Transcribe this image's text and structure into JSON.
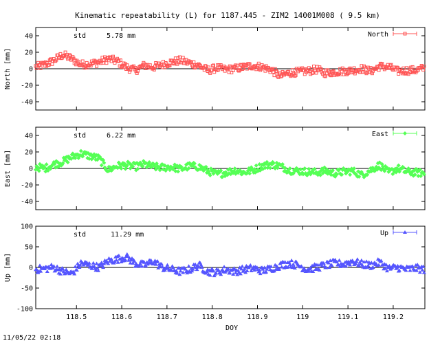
{
  "title": "Kinematic repeatability (L) for 1187.445 - ZIM2 14001M008  (  9.5 km)",
  "timestamp": "11/05/22 02:18",
  "chart_data": [
    {
      "type": "scatter",
      "panel": "north",
      "ylabel": "North [mm]",
      "xlabel": "",
      "legend": "North",
      "legend_position": "top-right",
      "std_label": "std",
      "std_value": "5.78 mm",
      "color": "#ff5555",
      "marker": "square",
      "xlim": [
        118.41,
        119.27
      ],
      "ylim": [
        -50,
        50
      ],
      "yticks": [
        "40",
        "20",
        "0",
        "-20",
        "-40"
      ],
      "ytick_values": [
        40,
        20,
        0,
        -20,
        -40
      ],
      "series": [
        {
          "name": "North",
          "x": [
            118.41,
            118.43,
            118.45,
            118.47,
            118.49,
            118.51,
            118.53,
            118.55,
            118.57,
            118.59,
            118.61,
            118.63,
            118.65,
            118.67,
            118.69,
            118.71,
            118.73,
            118.75,
            118.77,
            118.79,
            118.81,
            118.83,
            118.85,
            118.87,
            118.89,
            118.91,
            118.93,
            118.95,
            118.97,
            118.99,
            119.01,
            119.03,
            119.05,
            119.07,
            119.09,
            119.11,
            119.13,
            119.15,
            119.17,
            119.19,
            119.21,
            119.23,
            119.25,
            119.27
          ],
          "y": [
            2,
            5,
            10,
            17,
            12,
            5,
            6,
            8,
            12,
            9,
            2,
            -2,
            4,
            2,
            5,
            8,
            10,
            7,
            4,
            -2,
            1,
            -1,
            0,
            2,
            4,
            2,
            -1,
            -9,
            -5,
            -4,
            -3,
            -1,
            -5,
            -4,
            -3,
            -2,
            0,
            -3,
            3,
            2,
            -3,
            -2,
            -2,
            1
          ]
        }
      ]
    },
    {
      "type": "scatter",
      "panel": "east",
      "ylabel": "East [mm]",
      "xlabel": "",
      "legend": "East",
      "legend_position": "top-right",
      "std_label": "std",
      "std_value": "6.22 mm",
      "color": "#55ff55",
      "marker": "diamond",
      "xlim": [
        118.41,
        119.27
      ],
      "ylim": [
        -50,
        50
      ],
      "yticks": [
        "40",
        "20",
        "0",
        "-20",
        "-40"
      ],
      "ytick_values": [
        40,
        20,
        0,
        -20,
        -40
      ],
      "series": [
        {
          "name": "East",
          "x": [
            118.41,
            118.43,
            118.45,
            118.47,
            118.49,
            118.51,
            118.53,
            118.55,
            118.57,
            118.59,
            118.61,
            118.63,
            118.65,
            118.67,
            118.69,
            118.71,
            118.73,
            118.75,
            118.77,
            118.79,
            118.81,
            118.83,
            118.85,
            118.87,
            118.89,
            118.91,
            118.93,
            118.95,
            118.97,
            118.99,
            119.01,
            119.03,
            119.05,
            119.07,
            119.09,
            119.11,
            119.13,
            119.15,
            119.17,
            119.19,
            119.21,
            119.23,
            119.25,
            119.27
          ],
          "y": [
            2,
            0,
            5,
            8,
            14,
            18,
            15,
            12,
            -2,
            3,
            4,
            2,
            5,
            2,
            1,
            2,
            -1,
            3,
            2,
            -3,
            -7,
            -5,
            -2,
            -5,
            -2,
            3,
            5,
            3,
            -2,
            -3,
            -4,
            -5,
            -3,
            -6,
            -4,
            -3,
            -8,
            -2,
            4,
            -5,
            0,
            -4,
            -5,
            -6
          ]
        }
      ]
    },
    {
      "type": "scatter",
      "panel": "up",
      "ylabel": "Up [mm]",
      "xlabel": "DOY",
      "legend": "Up",
      "legend_position": "top-right",
      "std_label": "std",
      "std_value": "11.29 mm",
      "color": "#5555ff",
      "marker": "triangle",
      "xlim": [
        118.41,
        119.27
      ],
      "ylim": [
        -100,
        100
      ],
      "yticks": [
        "100",
        "50",
        "0",
        "-50",
        "-100"
      ],
      "ytick_values": [
        100,
        50,
        0,
        -50,
        -100
      ],
      "xticks": [
        "118.5",
        "118.6",
        "118.7",
        "118.8",
        "118.9",
        "119",
        "119.1",
        "119.2"
      ],
      "xtick_values": [
        118.5,
        118.6,
        118.7,
        118.8,
        118.9,
        119.0,
        119.1,
        119.2
      ],
      "series": [
        {
          "name": "Up",
          "x": [
            118.41,
            118.43,
            118.45,
            118.47,
            118.49,
            118.51,
            118.53,
            118.55,
            118.57,
            118.59,
            118.61,
            118.63,
            118.65,
            118.67,
            118.69,
            118.71,
            118.73,
            118.75,
            118.77,
            118.79,
            118.81,
            118.83,
            118.85,
            118.87,
            118.89,
            118.91,
            118.93,
            118.95,
            118.97,
            118.99,
            119.01,
            119.03,
            119.05,
            119.07,
            119.09,
            119.11,
            119.13,
            119.15,
            119.17,
            119.19,
            119.21,
            119.23,
            119.25,
            119.27
          ],
          "y": [
            -5,
            -3,
            0,
            -10,
            -15,
            10,
            5,
            0,
            15,
            20,
            25,
            10,
            5,
            15,
            0,
            -5,
            -10,
            -5,
            5,
            -10,
            -12,
            -5,
            -10,
            -5,
            -2,
            -8,
            -3,
            5,
            10,
            5,
            -5,
            0,
            5,
            10,
            8,
            15,
            8,
            5,
            12,
            -3,
            0,
            -5,
            -2,
            -5
          ]
        }
      ]
    }
  ]
}
